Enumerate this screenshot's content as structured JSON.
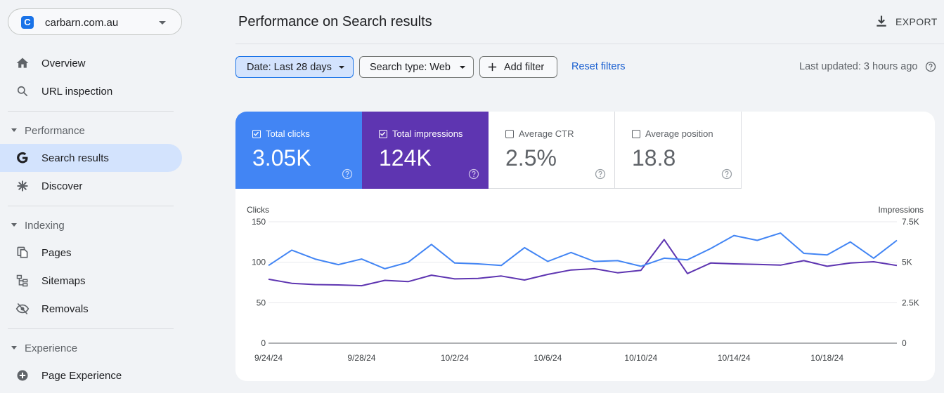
{
  "property": {
    "domain": "carbarn.com.au",
    "logo_letter": "C"
  },
  "sidebar": {
    "items": [
      {
        "label": "Overview",
        "icon": "home-icon"
      },
      {
        "label": "URL inspection",
        "icon": "search-icon"
      },
      {
        "label": "Search results",
        "icon": "google-g-icon",
        "active": true
      },
      {
        "label": "Discover",
        "icon": "asterisk-icon"
      },
      {
        "label": "Pages",
        "icon": "pages-icon"
      },
      {
        "label": "Sitemaps",
        "icon": "sitemap-icon"
      },
      {
        "label": "Removals",
        "icon": "eye-off-icon"
      },
      {
        "label": "Page Experience",
        "icon": "plus-circle-icon"
      }
    ],
    "sections": [
      "Performance",
      "Indexing",
      "Experience"
    ]
  },
  "header": {
    "title": "Performance on Search results",
    "export_label": "EXPORT"
  },
  "filters": {
    "date": "Date: Last 28 days",
    "search_type": "Search type: Web",
    "add_filter": "Add filter",
    "reset": "Reset filters",
    "last_updated": "Last updated: 3 hours ago"
  },
  "metrics": [
    {
      "label": "Total clicks",
      "value": "3.05K",
      "checked": true,
      "color": "#4285f4"
    },
    {
      "label": "Total impressions",
      "value": "124K",
      "checked": true,
      "color": "#5e35b1"
    },
    {
      "label": "Average CTR",
      "value": "2.5%",
      "checked": false
    },
    {
      "label": "Average position",
      "value": "18.8",
      "checked": false
    }
  ],
  "chart_data": {
    "type": "line",
    "x": [
      "9/24/24",
      "9/25/24",
      "9/26/24",
      "9/27/24",
      "9/28/24",
      "9/29/24",
      "9/30/24",
      "10/1/24",
      "10/2/24",
      "10/3/24",
      "10/4/24",
      "10/5/24",
      "10/6/24",
      "10/7/24",
      "10/8/24",
      "10/9/24",
      "10/10/24",
      "10/11/24",
      "10/12/24",
      "10/13/24",
      "10/14/24",
      "10/15/24",
      "10/16/24",
      "10/17/24",
      "10/18/24",
      "10/19/24",
      "10/20/24",
      "10/21/24"
    ],
    "tick_labels": [
      "9/24/24",
      "9/28/24",
      "10/2/24",
      "10/6/24",
      "10/10/24",
      "10/14/24",
      "10/18/24"
    ],
    "series": [
      {
        "name": "Clicks",
        "axis": "left",
        "color": "#4285f4",
        "values": [
          96,
          115,
          104,
          97,
          104,
          92,
          100,
          122,
          99,
          98,
          96,
          118,
          101,
          112,
          101,
          102,
          95,
          105,
          103,
          117,
          133,
          127,
          136,
          111,
          109,
          125,
          105,
          127
        ]
      },
      {
        "name": "Impressions",
        "axis": "right",
        "color": "#5e35b1",
        "values": [
          3950,
          3700,
          3620,
          3600,
          3550,
          3880,
          3800,
          4200,
          3970,
          4000,
          4150,
          3900,
          4250,
          4520,
          4600,
          4350,
          4500,
          6400,
          4300,
          4950,
          4900,
          4870,
          4820,
          5100,
          4750,
          4950,
          5030,
          4800
        ]
      }
    ],
    "ylabel_left": "Clicks",
    "ylim_left": [
      0,
      150
    ],
    "yticks_left": [
      "150",
      "100",
      "50",
      "0"
    ],
    "ylabel_right": "Impressions",
    "ylim_right": [
      0,
      7500
    ],
    "yticks_right": [
      "7.5K",
      "5K",
      "2.5K",
      "0"
    ],
    "grid": true
  }
}
